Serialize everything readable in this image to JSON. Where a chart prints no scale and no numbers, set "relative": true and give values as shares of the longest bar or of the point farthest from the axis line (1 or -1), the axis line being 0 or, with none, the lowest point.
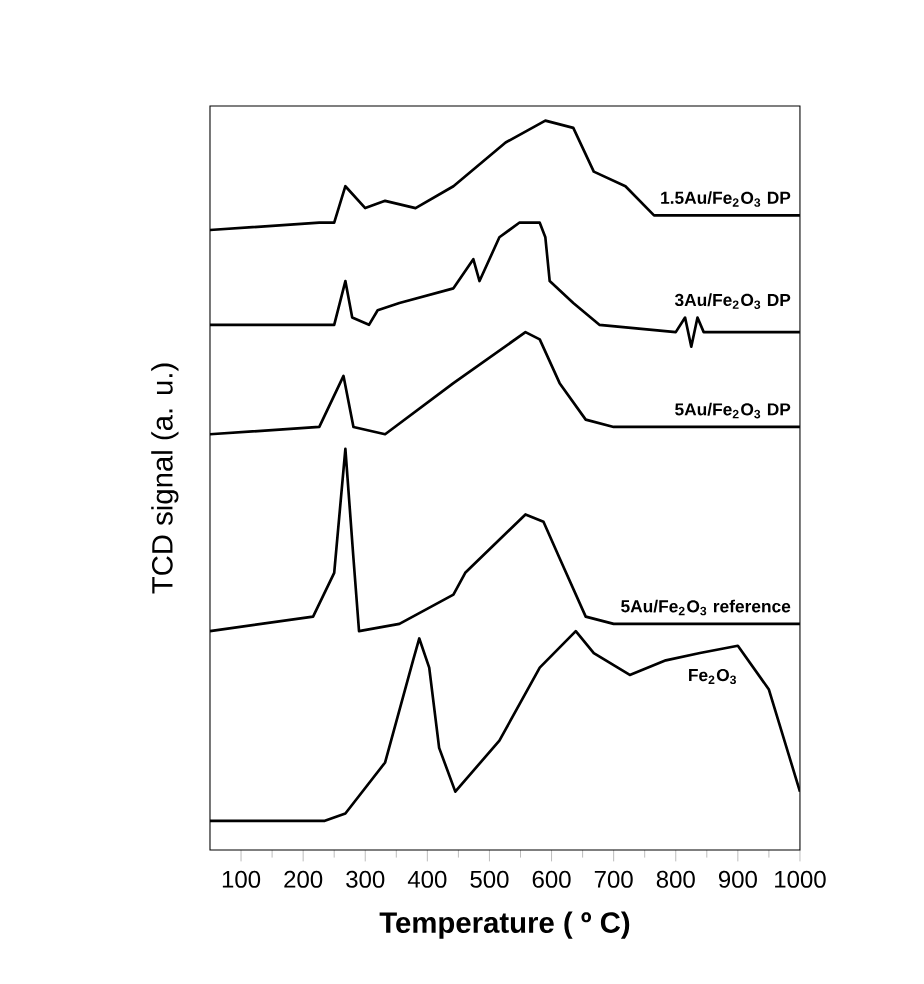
{
  "chart_data": {
    "type": "line",
    "relative": true,
    "xlabel": "Temperature ( º C)",
    "ylabel": "TCD signal (a. u.)",
    "xlim": [
      50,
      1000
    ],
    "xticks": [
      100,
      200,
      300,
      400,
      500,
      600,
      700,
      800,
      900,
      1000
    ],
    "series": [
      {
        "name": "1.5Au/Fe$_{2}$O$_{3}$ DP",
        "color": "#000000",
        "x": [
          50,
          226,
          250,
          268,
          300,
          332,
          381,
          442,
          526,
          590,
          635,
          668,
          719,
          765,
          840,
          1000
        ],
        "values": [
          0.85,
          0.86,
          0.86,
          0.91,
          0.88,
          0.89,
          0.88,
          0.91,
          0.97,
          1.0,
          0.99,
          0.93,
          0.91,
          0.87,
          0.87,
          0.87
        ]
      },
      {
        "name": "3Au/Fe$_{2}$O$_{3}$ DP",
        "color": "#000000",
        "x": [
          50,
          250,
          268,
          279,
          306,
          320,
          355,
          442,
          474,
          484,
          516,
          548,
          581,
          590,
          597,
          635,
          677,
          800,
          815,
          825,
          835,
          845,
          1000
        ],
        "values": [
          0.72,
          0.72,
          0.78,
          0.73,
          0.72,
          0.74,
          0.75,
          0.77,
          0.81,
          0.78,
          0.84,
          0.86,
          0.86,
          0.84,
          0.78,
          0.75,
          0.72,
          0.71,
          0.73,
          0.69,
          0.73,
          0.71,
          0.71
        ]
      },
      {
        "name": "5Au/Fe$_{2}$O$_{3}$ DP",
        "color": "#000000",
        "x": [
          50,
          226,
          265,
          281,
          332,
          442,
          558,
          581,
          613,
          655,
          700,
          1000
        ],
        "values": [
          0.57,
          0.58,
          0.65,
          0.58,
          0.57,
          0.64,
          0.71,
          0.7,
          0.64,
          0.59,
          0.58,
          0.58
        ]
      },
      {
        "name": "5Au/Fe$_{2}$O$_{3}$ reference",
        "color": "#000000",
        "x": [
          50,
          216,
          250,
          268,
          281,
          290,
          355,
          442,
          461,
          558,
          587,
          613,
          655,
          700,
          1000
        ],
        "values": [
          0.3,
          0.32,
          0.38,
          0.55,
          0.4,
          0.3,
          0.31,
          0.35,
          0.38,
          0.46,
          0.45,
          0.4,
          0.32,
          0.31,
          0.31
        ]
      },
      {
        "name": "Fe$_{2}$O$_{3}$",
        "color": "#000000",
        "x": [
          50,
          235,
          268,
          332,
          377,
          387,
          403,
          419,
          445,
          516,
          581,
          639,
          668,
          726,
          784,
          839,
          900,
          950,
          1000
        ],
        "values": [
          0.04,
          0.04,
          0.05,
          0.12,
          0.26,
          0.29,
          0.25,
          0.14,
          0.08,
          0.15,
          0.25,
          0.3,
          0.27,
          0.24,
          0.26,
          0.27,
          0.28,
          0.22,
          0.08
        ]
      }
    ]
  }
}
